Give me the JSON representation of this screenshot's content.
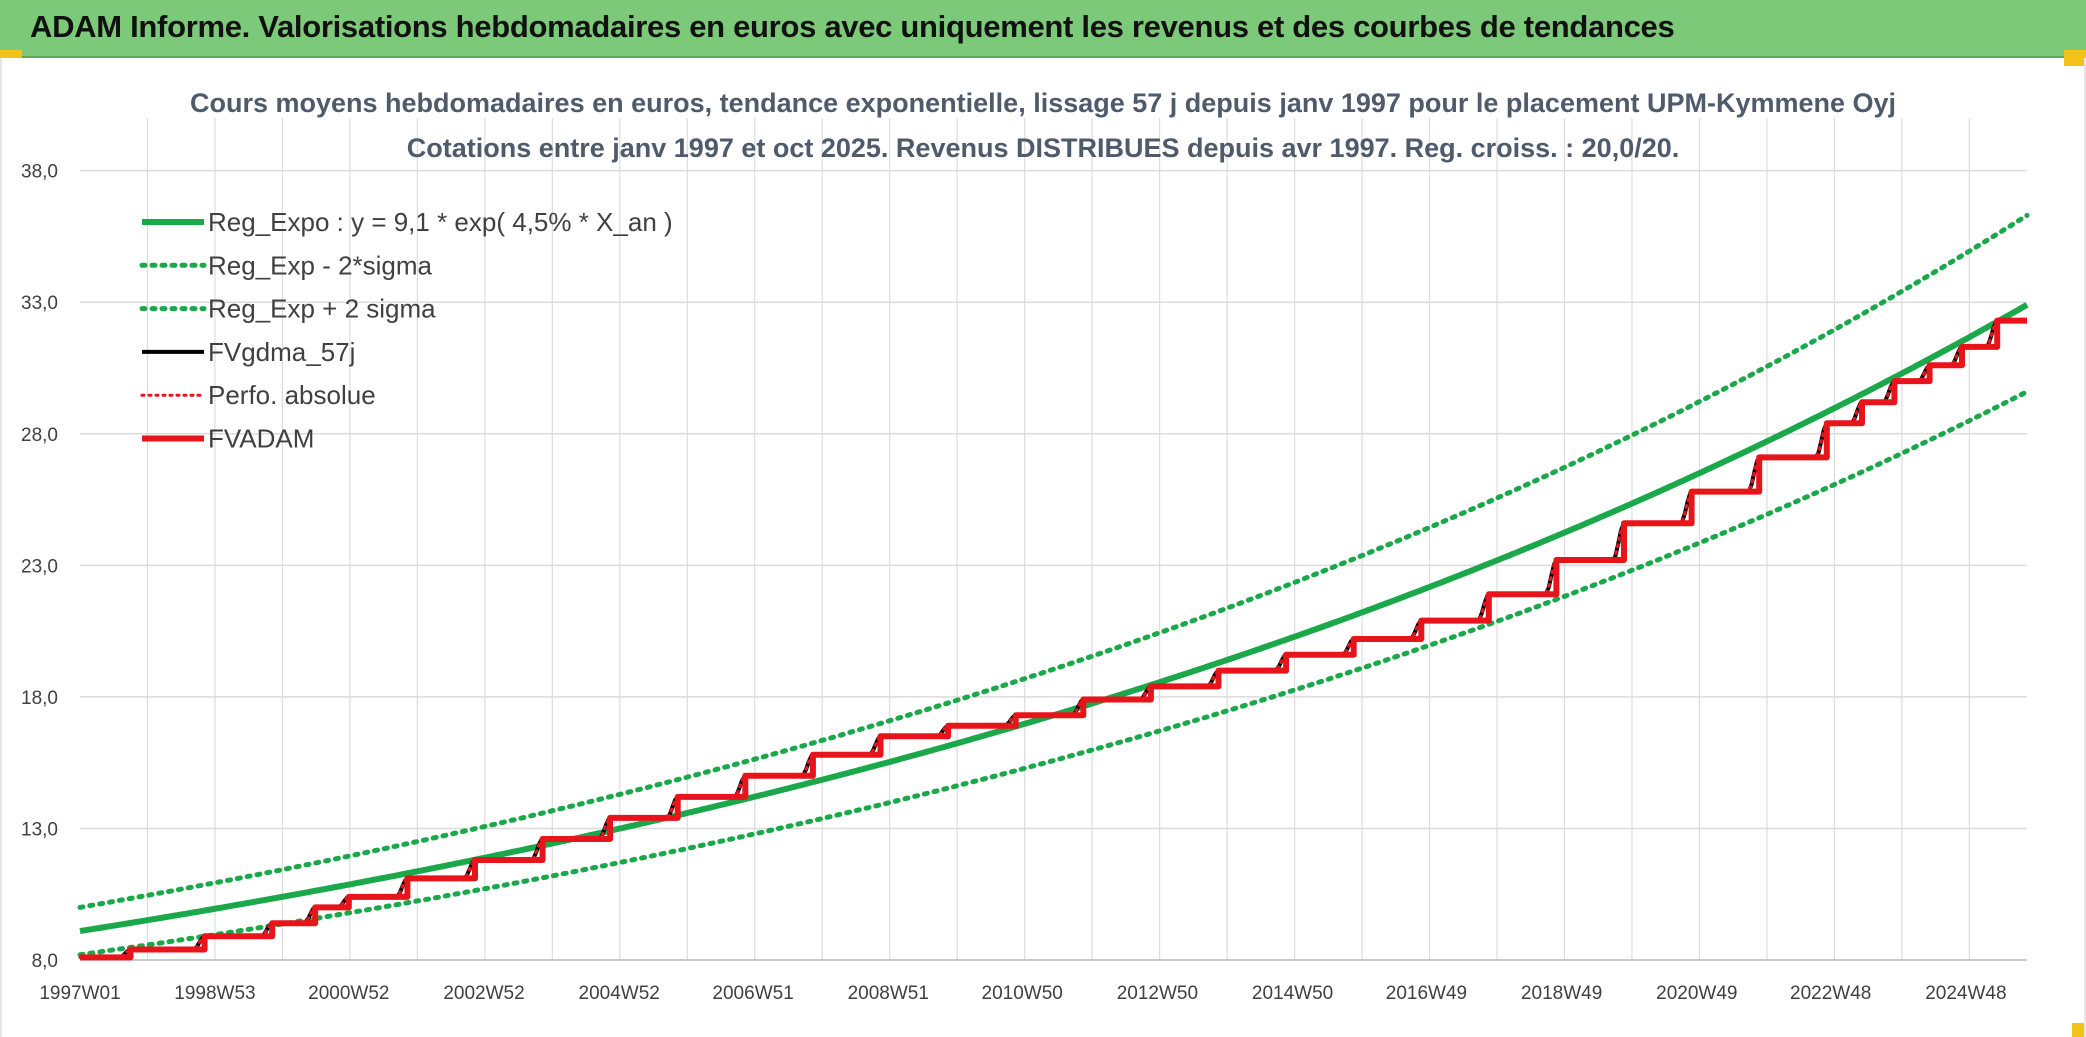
{
  "banner": {
    "title": "ADAM Informe. Valorisations hebdomadaires en euros avec uniquement les revenus et des courbes de tendances"
  },
  "colors": {
    "banner": "#7dc97a",
    "trend": "#1aa84a",
    "fvgdma": "#000000",
    "fvadam": "#e8141b",
    "perfo": "#e8141b",
    "grid": "#dcdcdc"
  },
  "chart_data": {
    "type": "line",
    "title": "Cours moyens hebdomadaires en euros, tendance exponentielle, lissage 57 j depuis janv 1997 pour le placement UPM-Kymmene Oyj",
    "subtitle": "Cotations entre janv 1997 et oct 2025. Revenus DISTRIBUES depuis avr 1997. Reg. croiss. : 20,0/20.",
    "xlabel": "",
    "ylabel": "",
    "x_range": [
      "1997W01",
      "2025W43"
    ],
    "ylim": [
      8.0,
      40.0
    ],
    "y_ticks": [
      "8,0",
      "13,0",
      "18,0",
      "23,0",
      "28,0",
      "33,0",
      "38,0"
    ],
    "x_ticks": [
      "1997W01",
      "1998W53",
      "2000W52",
      "2002W52",
      "2004W52",
      "2006W51",
      "2008W51",
      "2010W50",
      "2012W50",
      "2014W50",
      "2016W49",
      "2018W49",
      "2020W49",
      "2022W48",
      "2024W48"
    ],
    "legend_position": "top-left",
    "grid": true,
    "series": [
      {
        "name": "Reg_Expo : y = 9,1 * exp( 4,5% *  X_an )",
        "style": "solid-green",
        "x": [
          "1997W01",
          "2000W52",
          "2004W52",
          "2008W51",
          "2012W50",
          "2016W49",
          "2020W49",
          "2024W48",
          "2025W43"
        ],
        "values": [
          9.1,
          10.9,
          13.0,
          15.5,
          18.5,
          22.2,
          26.6,
          31.8,
          32.9
        ]
      },
      {
        "name": "Reg_Exp - 2*sigma",
        "style": "dotted-green",
        "x": [
          "1997W01",
          "2000W52",
          "2004W52",
          "2008W51",
          "2012W50",
          "2016W49",
          "2020W49",
          "2024W48",
          "2025W43"
        ],
        "values": [
          8.2,
          9.8,
          11.7,
          14.0,
          16.7,
          20.0,
          23.9,
          28.6,
          29.6
        ]
      },
      {
        "name": "Reg_Exp + 2 sigma",
        "style": "dotted-green",
        "x": [
          "1997W01",
          "2000W52",
          "2004W52",
          "2008W51",
          "2012W50",
          "2016W49",
          "2020W49",
          "2024W48",
          "2025W43"
        ],
        "values": [
          10.0,
          12.0,
          14.3,
          17.0,
          20.4,
          24.4,
          29.2,
          35.0,
          36.3
        ]
      },
      {
        "name": "FVgdma_57j",
        "style": "solid-black",
        "x": [
          "1997W01",
          "1997W40",
          "1998W45",
          "1999W45",
          "2000W26",
          "2000W52",
          "2001W45",
          "2002W45",
          "2003W45",
          "2004W45",
          "2005W45",
          "2006W45",
          "2007W45",
          "2008W45",
          "2009W45",
          "2010W45",
          "2011W45",
          "2012W45",
          "2013W45",
          "2014W45",
          "2015W45",
          "2016W45",
          "2017W45",
          "2018W45",
          "2019W45",
          "2020W45",
          "2021W45",
          "2022W45",
          "2023W20",
          "2023W45",
          "2024W20",
          "2024W45",
          "2025W20",
          "2025W43"
        ],
        "values": [
          8.1,
          8.4,
          8.9,
          9.4,
          10.0,
          10.4,
          11.1,
          11.8,
          12.6,
          13.4,
          14.2,
          15.0,
          15.8,
          16.5,
          16.9,
          17.3,
          17.9,
          18.4,
          19.0,
          19.6,
          20.2,
          20.9,
          21.9,
          23.2,
          24.6,
          25.8,
          27.1,
          28.4,
          29.2,
          30.0,
          30.6,
          31.3,
          32.3,
          32.3
        ]
      },
      {
        "name": "Perfo. absolue",
        "style": "dotted-red",
        "x": [
          "1997W01",
          "1997W40",
          "1998W45",
          "1999W45",
          "2000W26",
          "2000W52",
          "2001W45",
          "2002W45",
          "2003W45",
          "2004W45",
          "2005W45",
          "2006W45",
          "2007W45",
          "2008W45",
          "2009W45",
          "2010W45",
          "2011W45",
          "2012W45",
          "2013W45",
          "2014W45",
          "2015W45",
          "2016W45",
          "2017W45",
          "2018W45",
          "2019W45",
          "2020W45",
          "2021W45",
          "2022W45",
          "2023W20",
          "2023W45",
          "2024W20",
          "2024W45",
          "2025W20",
          "2025W43"
        ],
        "values": [
          8.1,
          8.4,
          8.9,
          9.4,
          10.0,
          10.4,
          11.1,
          11.8,
          12.6,
          13.4,
          14.2,
          15.0,
          15.8,
          16.5,
          16.9,
          17.3,
          17.9,
          18.4,
          19.0,
          19.6,
          20.2,
          20.9,
          21.9,
          23.2,
          24.6,
          25.8,
          27.1,
          28.4,
          29.2,
          30.0,
          30.6,
          31.3,
          32.3,
          32.3
        ]
      },
      {
        "name": "FVADAM",
        "style": "step-red",
        "x": [
          "1997W01",
          "1997W40",
          "1998W45",
          "1999W45",
          "2000W26",
          "2000W52",
          "2001W45",
          "2002W45",
          "2003W45",
          "2004W45",
          "2005W45",
          "2006W45",
          "2007W45",
          "2008W45",
          "2009W45",
          "2010W45",
          "2011W45",
          "2012W45",
          "2013W45",
          "2014W45",
          "2015W45",
          "2016W45",
          "2017W45",
          "2018W45",
          "2019W45",
          "2020W45",
          "2021W45",
          "2022W45",
          "2023W20",
          "2023W45",
          "2024W20",
          "2024W45",
          "2025W20",
          "2025W43"
        ],
        "values": [
          8.1,
          8.4,
          8.9,
          9.4,
          10.0,
          10.4,
          11.1,
          11.8,
          12.6,
          13.4,
          14.2,
          15.0,
          15.8,
          16.5,
          16.9,
          17.3,
          17.9,
          18.4,
          19.0,
          19.6,
          20.2,
          20.9,
          21.9,
          23.2,
          24.6,
          25.8,
          27.1,
          28.4,
          29.2,
          30.0,
          30.6,
          31.3,
          32.3,
          32.3
        ]
      }
    ]
  }
}
